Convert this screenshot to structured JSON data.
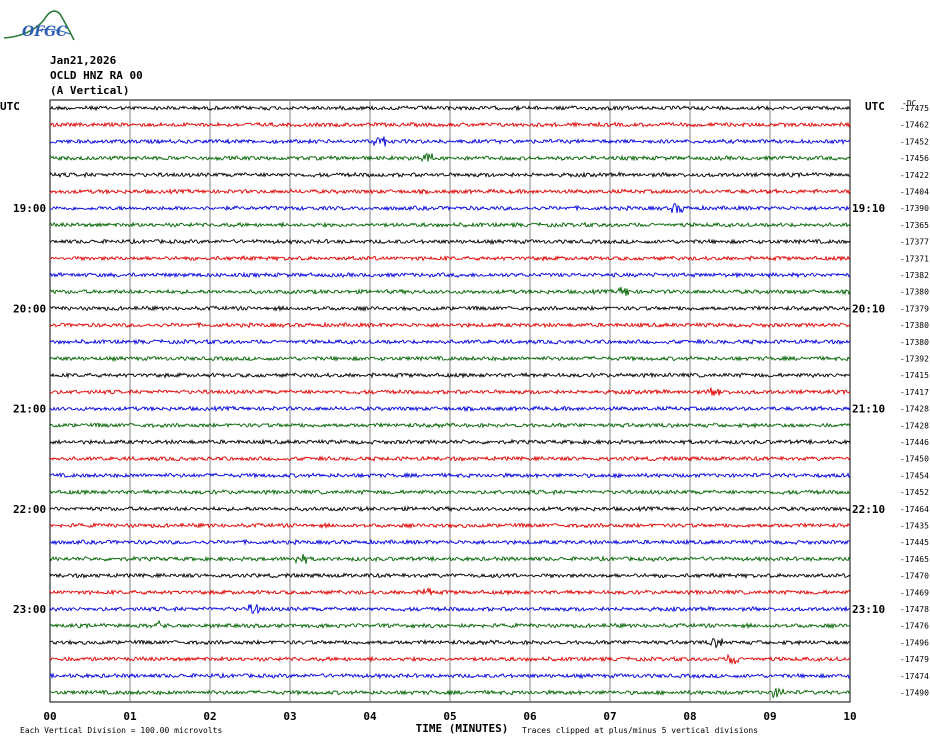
{
  "header": {
    "logo_text": "OFGC",
    "date": "Jan21,2026",
    "station": "OCLD HNZ RA 00",
    "component": "(A Vertical)",
    "utc_left": "UTC",
    "utc_right": "UTC",
    "offset_header": "-DC"
  },
  "colors": {
    "trace": [
      "#000000",
      "#e00000",
      "#0000e0",
      "#006400"
    ],
    "grid": "#808080",
    "logo": "#2a7a3a"
  },
  "chart_data": {
    "type": "line",
    "xlabel": "TIME (MINUTES)",
    "x_ticks": [
      "00",
      "01",
      "02",
      "03",
      "04",
      "05",
      "06",
      "07",
      "08",
      "09",
      "10"
    ],
    "xlim": [
      0,
      10
    ],
    "left_time_labels": [
      {
        "row": 6,
        "label": "19:00"
      },
      {
        "row": 12,
        "label": "20:00"
      },
      {
        "row": 18,
        "label": "21:00"
      },
      {
        "row": 24,
        "label": "22:00"
      },
      {
        "row": 30,
        "label": "23:00"
      }
    ],
    "right_time_labels": [
      {
        "row": 6,
        "label": "19:10"
      },
      {
        "row": 12,
        "label": "20:10"
      },
      {
        "row": 18,
        "label": "21:10"
      },
      {
        "row": 24,
        "label": "22:10"
      },
      {
        "row": 30,
        "label": "23:10"
      }
    ],
    "dc_offsets": [
      "-17475",
      "-17462",
      "-17452",
      "-17456",
      "-17422",
      "-17404",
      "-17390",
      "-17365",
      "-17377",
      "-17371",
      "-17382",
      "-17380",
      "-17379",
      "-17380",
      "-17380",
      "-17392",
      "-17415",
      "-17417",
      "-17428",
      "-17428",
      "-17446",
      "-17450",
      "-17454",
      "-17452",
      "-17464",
      "-17435",
      "-17445",
      "-17465",
      "-17470",
      "-17469",
      "-17478",
      "-17476",
      "-17496",
      "-17479",
      "-17474",
      "-17490"
    ],
    "footer_left": "Each Vertical Division =  100.00 microvolts",
    "footer_right": "Traces clipped at plus/minus 5 vertical divisions"
  }
}
